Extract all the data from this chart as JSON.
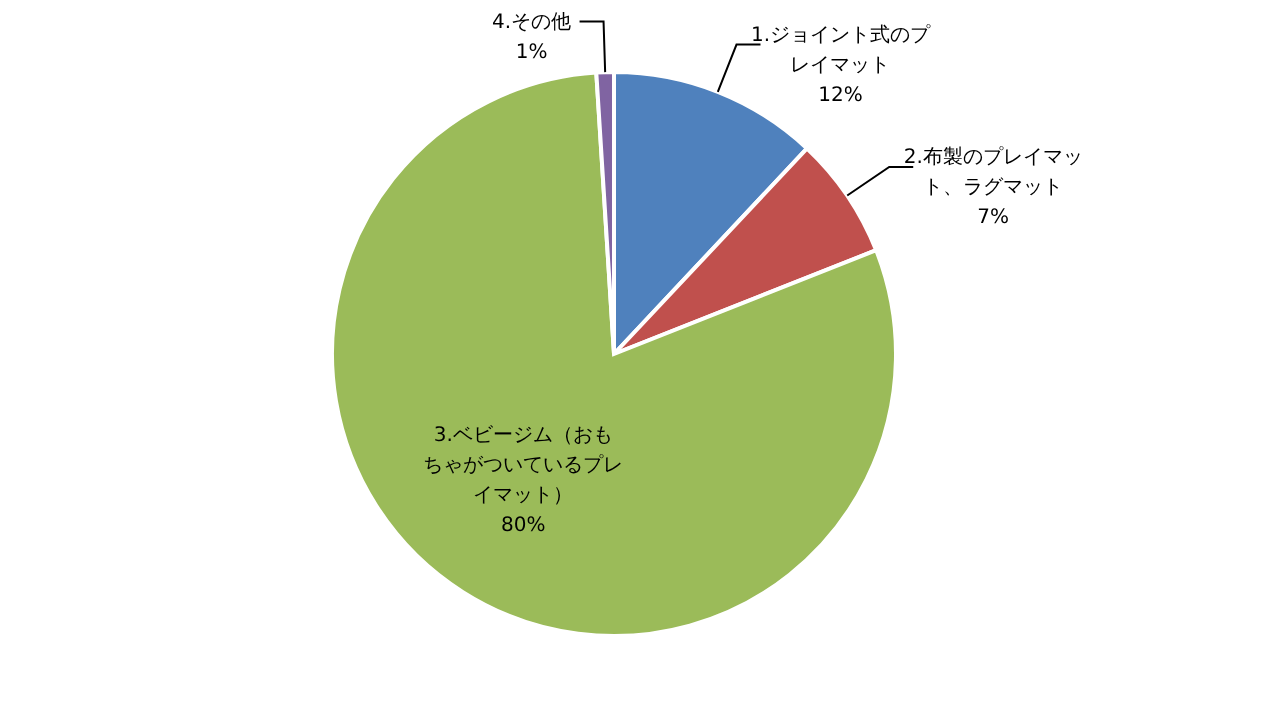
{
  "chart_data": {
    "type": "pie",
    "categories": [
      "1.ジョイント式のプレイマット",
      "2.布製のプレイマット、ラグマット",
      "3.ベビージム（おもちゃがついているプレイマット）",
      "4.その他"
    ],
    "values": [
      12,
      7,
      80,
      1
    ],
    "colors": [
      "#4f81bd",
      "#c0504d",
      "#9bbb59",
      "#8064a2"
    ],
    "value_labels": [
      "12%",
      "7%",
      "80%",
      "1%"
    ],
    "legend": false
  }
}
